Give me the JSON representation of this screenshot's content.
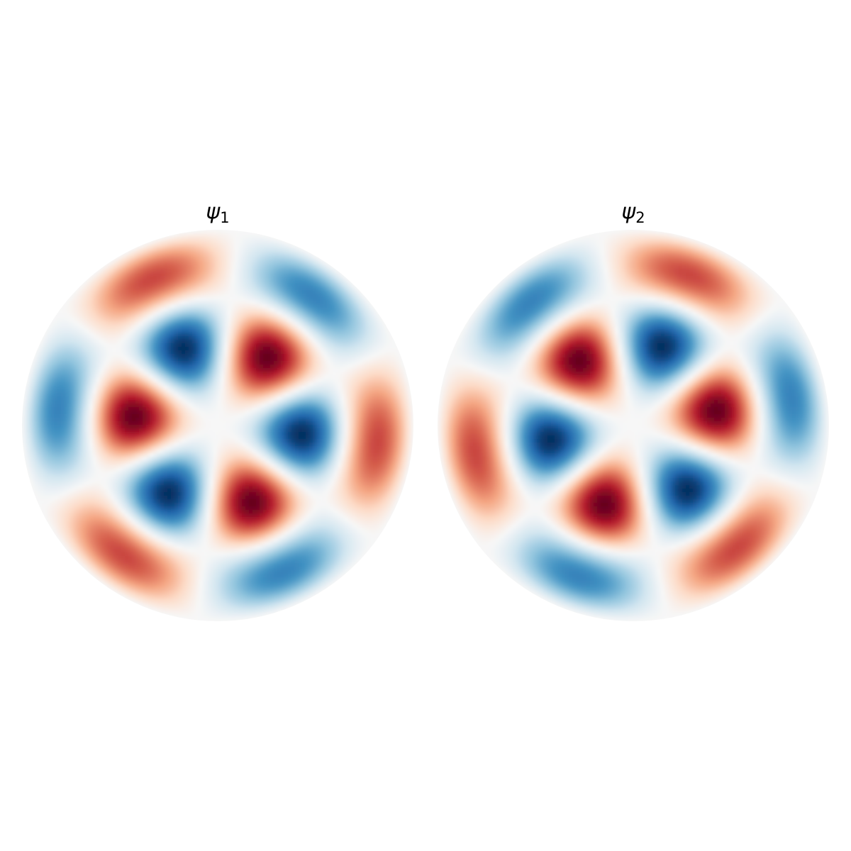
{
  "panels": [
    {
      "symbol": "ψ",
      "subscript": "1"
    },
    {
      "symbol": "ψ",
      "subscript": "2"
    }
  ]
}
